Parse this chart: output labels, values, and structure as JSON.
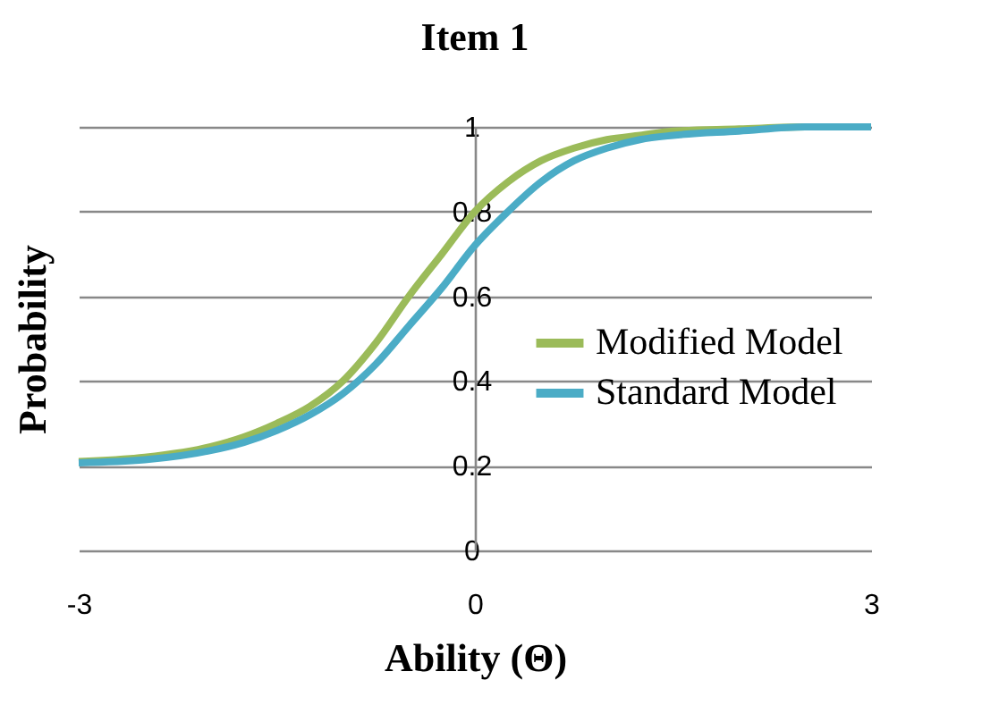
{
  "chart_data": {
    "type": "line",
    "title": "Item 1",
    "xlabel": "Ability (Θ)",
    "ylabel": "Probability",
    "x": [
      -3,
      -2.5,
      -2,
      -1.75,
      -1.5,
      -1.25,
      -1,
      -0.75,
      -0.5,
      -0.25,
      0,
      0.25,
      0.5,
      0.75,
      1,
      1.25,
      1.5,
      2,
      2.5,
      3
    ],
    "series": [
      {
        "name": "Modified Model",
        "color": "#9bbb59",
        "values": [
          0.21,
          0.22,
          0.245,
          0.268,
          0.3,
          0.34,
          0.4,
          0.49,
          0.6,
          0.7,
          0.8,
          0.87,
          0.92,
          0.95,
          0.97,
          0.98,
          0.99,
          0.995,
          1.0,
          1.0
        ]
      },
      {
        "name": "Standard Model",
        "color": "#4bacc6",
        "values": [
          0.207,
          0.214,
          0.236,
          0.255,
          0.283,
          0.32,
          0.37,
          0.44,
          0.53,
          0.62,
          0.72,
          0.8,
          0.87,
          0.92,
          0.95,
          0.97,
          0.98,
          0.99,
          1.0,
          1.0
        ]
      }
    ],
    "xlim": [
      -3,
      3
    ],
    "xticks": [
      -3,
      0,
      3
    ],
    "ylim": [
      0,
      1
    ],
    "yticks": [
      0,
      0.2,
      0.4,
      0.6,
      0.8,
      1
    ],
    "grid": "y",
    "legend": "right",
    "marker": "none",
    "line_style": "solid"
  }
}
